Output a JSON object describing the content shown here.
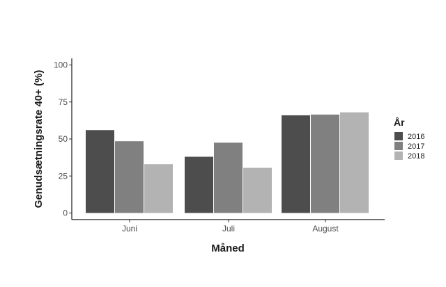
{
  "chart_data": {
    "type": "bar",
    "title": "",
    "xlabel": "Måned",
    "ylabel": "Genudsætningsrate 40+ (%)",
    "ylim": [
      0,
      100
    ],
    "yticks": [
      0,
      25,
      50,
      75,
      100
    ],
    "grid": false,
    "legend_title": "År",
    "legend_position": "right",
    "categories": [
      "Juni",
      "Juli",
      "August"
    ],
    "series": [
      {
        "name": "2016",
        "color": "#4d4d4d",
        "values": [
          56,
          38,
          66
        ]
      },
      {
        "name": "2017",
        "color": "#808080",
        "values": [
          48.5,
          47.5,
          66.5
        ]
      },
      {
        "name": "2018",
        "color": "#b3b3b3",
        "values": [
          33,
          30.5,
          68
        ]
      }
    ]
  }
}
